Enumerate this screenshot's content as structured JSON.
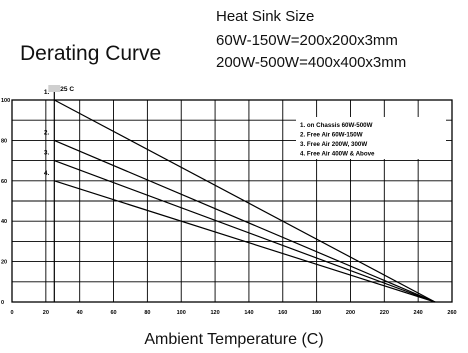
{
  "title": "Derating Curve",
  "heat_sink": {
    "heading": "Heat Sink Size",
    "line1": "60W-150W=200x200x3mm",
    "line2": "200W-500W=400x400x3mm"
  },
  "chart_data": {
    "type": "line",
    "title": "Derating Curve",
    "xlabel": "Ambient Temperature (C)",
    "ylabel": "",
    "xlim": [
      0,
      260
    ],
    "ylim": [
      0,
      100
    ],
    "x_ticks": [
      0,
      20,
      40,
      60,
      80,
      100,
      120,
      140,
      160,
      180,
      200,
      220,
      240,
      260
    ],
    "y_ticks": [
      0,
      20,
      40,
      60,
      80,
      100
    ],
    "grid": true,
    "legend_position": "top-right",
    "reference_line": {
      "x": 25,
      "label": "25 C"
    },
    "series": [
      {
        "name": "1. on Chassis 60W-500W",
        "marker": "1.",
        "x": [
          25,
          250
        ],
        "y": [
          100,
          0
        ]
      },
      {
        "name": "2. Free Air 60W-150W",
        "marker": "2.",
        "x": [
          25,
          250
        ],
        "y": [
          80,
          0
        ]
      },
      {
        "name": "3. Free Air 200W, 300W",
        "marker": "3.",
        "x": [
          25,
          250
        ],
        "y": [
          70,
          0
        ]
      },
      {
        "name": "4. Free Air 400W & Above",
        "marker": "4.",
        "x": [
          25,
          250
        ],
        "y": [
          60,
          0
        ]
      }
    ]
  }
}
